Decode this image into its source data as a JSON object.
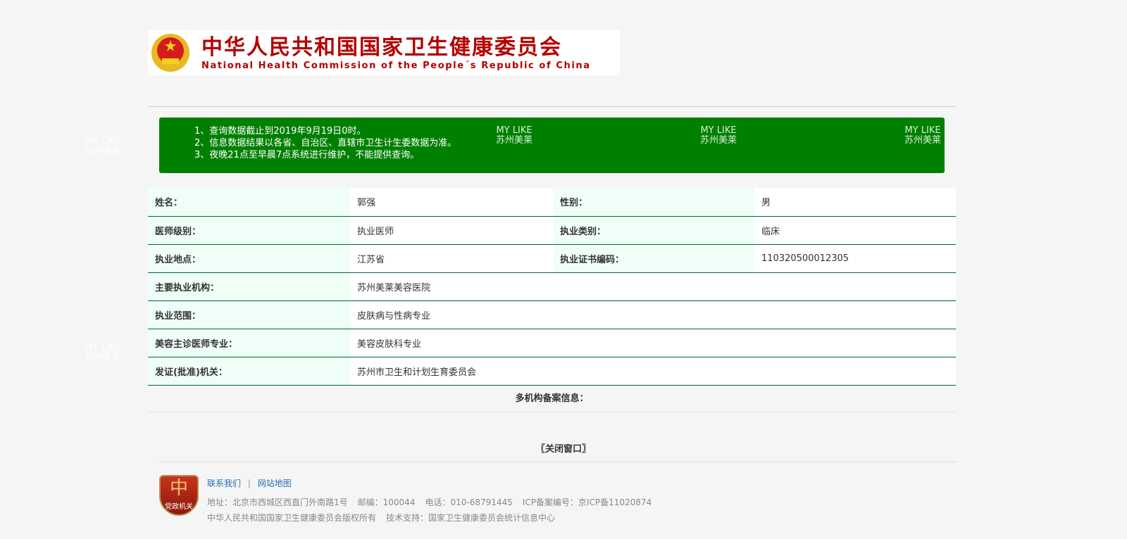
{
  "header": {
    "title_cn": "中华人民共和国国家卫生健康委员会",
    "title_en": "National Health Commission of the People´s Republic of China"
  },
  "watermark": {
    "line1": "MY LIKE",
    "line2": "苏州美莱"
  },
  "notice": [
    "1、查询数据截止到2019年9月19日0时。",
    "2、信息数据结果以各省、自治区、直辖市卫生计生委数据为准。",
    "3、夜晚21点至早晨7点系统进行维护，不能提供查询。"
  ],
  "rows": [
    {
      "l1": "姓名：",
      "v1": "郭强",
      "l2": "性别：",
      "v2": "男"
    },
    {
      "l1": "医师级别：",
      "v1": "执业医师",
      "l2": "执业类别：",
      "v2": "临床"
    },
    {
      "l1": "执业地点：",
      "v1": "江苏省",
      "l2": "执业证书编码：",
      "v2": "110320500012305"
    }
  ],
  "wide_rows": [
    {
      "l": "主要执业机构：",
      "v": "苏州美莱美容医院"
    },
    {
      "l": "执业范围：",
      "v": "皮肤病与性病专业"
    },
    {
      "l": "美容主诊医师专业：",
      "v": "美容皮肤科专业"
    },
    {
      "l": "发证(批准)机关：",
      "v": "苏州市卫生和计划生育委员会"
    }
  ],
  "multi_label": "多机构备案信息：",
  "close_label": "〖关闭窗口〗",
  "footer": {
    "badge": "党政机关",
    "links": [
      "联系我们",
      "网站地图"
    ],
    "sep": "|",
    "address": "地址：北京市西城区西直门外南路1号",
    "postcode": "邮编：100044",
    "phone": "电话：010-68791445",
    "icp": "ICP备案编号：京ICP备11020874",
    "copyright": "中华人民共和国国家卫生健康委员会版权所有",
    "support": "技术支持：国家卫生健康委员会统计信息中心"
  },
  "colors": {
    "notice_bg": "#008000",
    "label_bg": "#effff7",
    "border": "#006633",
    "title": "#b40000",
    "link": "#2a6fb5"
  }
}
